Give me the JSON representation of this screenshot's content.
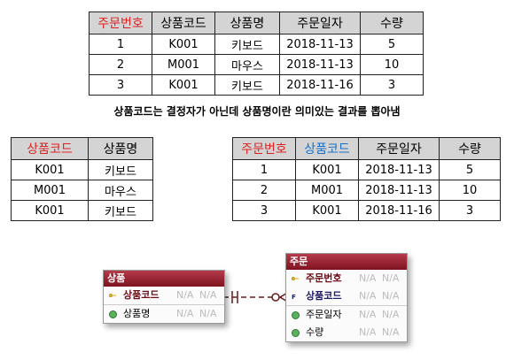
{
  "orders_table": {
    "headers": [
      "주문번호",
      "상품코드",
      "상품명",
      "주문일자",
      "수량"
    ],
    "rows": [
      [
        "1",
        "K001",
        "키보드",
        "2018-11-13",
        "5"
      ],
      [
        "2",
        "M001",
        "마우스",
        "2018-11-13",
        "10"
      ],
      [
        "3",
        "K001",
        "키보드",
        "2018-11-16",
        "3"
      ]
    ]
  },
  "caption": "상품코드는 결정자가 아닌데 상품명이란 의미있는 결과를 뽑아냄",
  "product_table": {
    "headers": [
      "상품코드",
      "상품명"
    ],
    "rows": [
      [
        "K001",
        "키보드"
      ],
      [
        "M001",
        "마우스"
      ],
      [
        "K001",
        "키보드"
      ]
    ]
  },
  "order_table2": {
    "headers": [
      "주문번호",
      "상품코드",
      "주문일자",
      "수량"
    ],
    "rows": [
      [
        "1",
        "K001",
        "2018-11-13",
        "5"
      ],
      [
        "2",
        "M001",
        "2018-11-13",
        "10"
      ],
      [
        "3",
        "K001",
        "2018-11-16",
        "3"
      ]
    ]
  },
  "erd": {
    "product": {
      "title": "상품",
      "attrs": [
        {
          "name": "상품코드",
          "na1": "N/A",
          "na2": "N/A",
          "key": "pk"
        },
        {
          "name": "상품명",
          "na1": "N/A",
          "na2": "N/A",
          "key": "none"
        }
      ]
    },
    "order": {
      "title": "주문",
      "attrs": [
        {
          "name": "주문번호",
          "na1": "N/A",
          "na2": "N/A",
          "key": "pk"
        },
        {
          "name": "상품코드",
          "na1": "N/A",
          "na2": "N/A",
          "key": "fk"
        },
        {
          "name": "주문일자",
          "na1": "N/A",
          "na2": "N/A",
          "key": "none"
        },
        {
          "name": "수량",
          "na1": "N/A",
          "na2": "N/A",
          "key": "none"
        }
      ]
    }
  },
  "colors": {
    "header_bg": "#d4d4d4",
    "key_red": "#e02020",
    "key_blue": "#1a6fc4",
    "entity_header": "#8e1a28"
  }
}
